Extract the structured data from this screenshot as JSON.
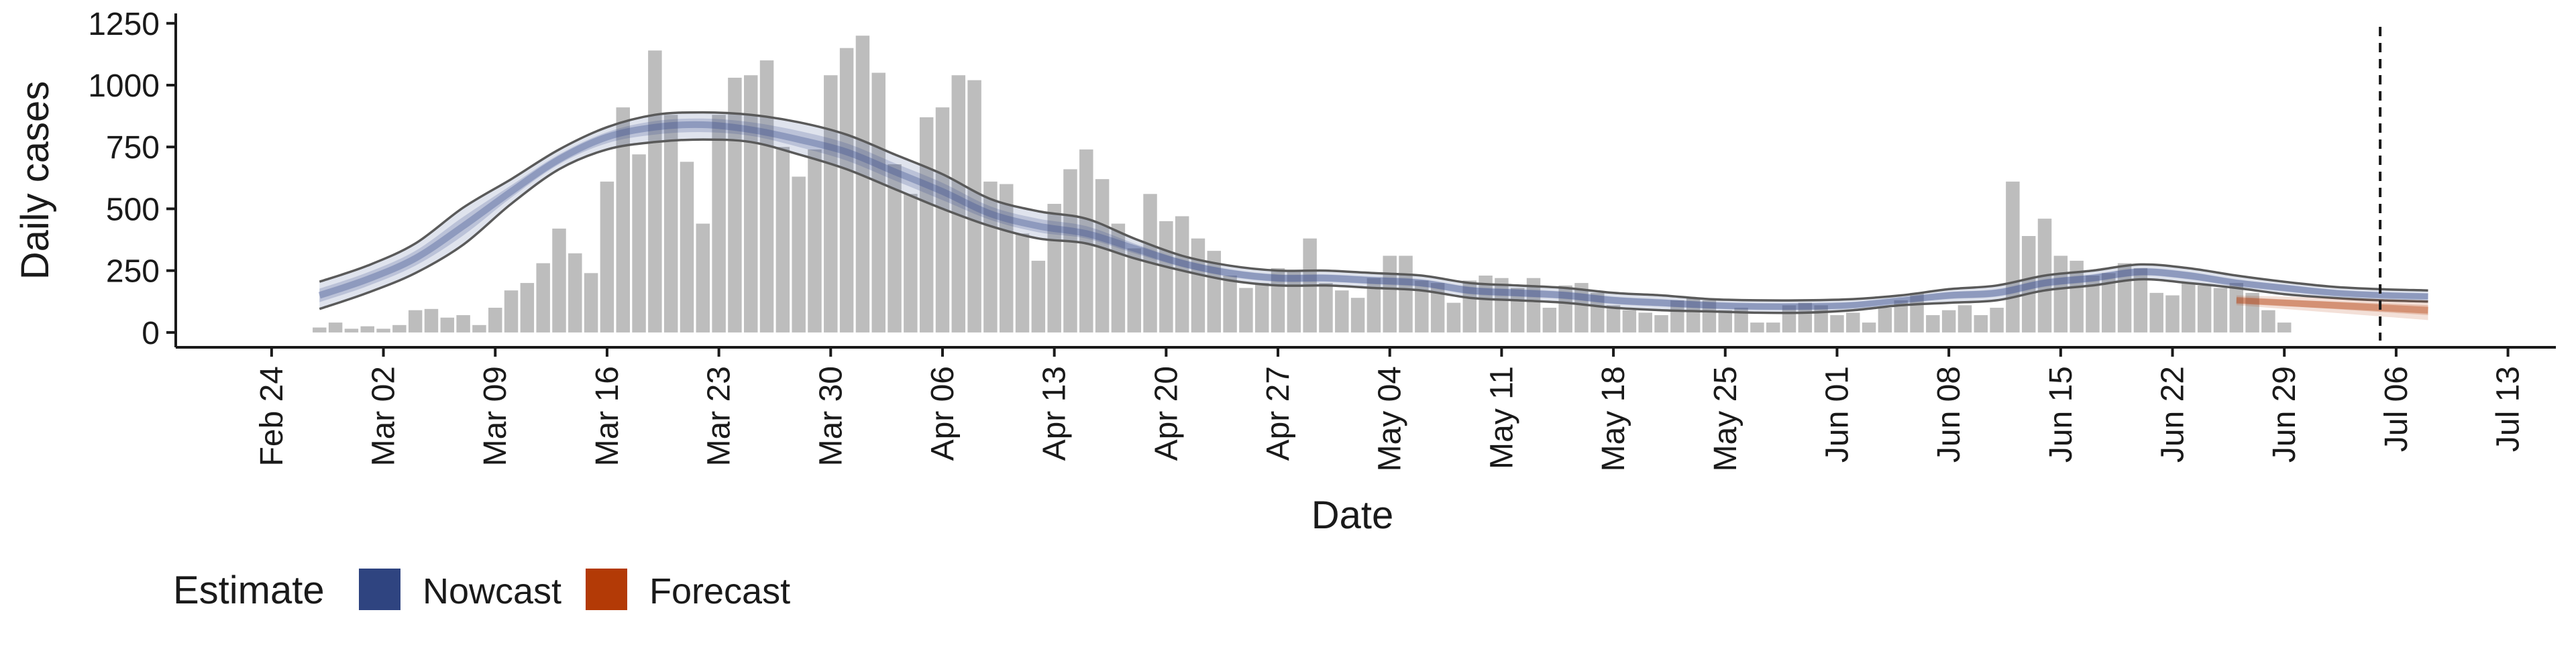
{
  "chart_data": {
    "type": "bar",
    "xlabel": "Date",
    "ylabel": "Daily cases",
    "ylim": [
      -60,
      1290
    ],
    "y_ticks": [
      0,
      250,
      500,
      750,
      1000,
      1250
    ],
    "x_range": [
      "2020-02-18",
      "2020-07-16"
    ],
    "x_ticks": [
      {
        "date": "2020-02-24",
        "label": "Feb 24"
      },
      {
        "date": "2020-03-02",
        "label": "Mar 02"
      },
      {
        "date": "2020-03-09",
        "label": "Mar 09"
      },
      {
        "date": "2020-03-16",
        "label": "Mar 16"
      },
      {
        "date": "2020-03-23",
        "label": "Mar 23"
      },
      {
        "date": "2020-03-30",
        "label": "Mar 30"
      },
      {
        "date": "2020-04-06",
        "label": "Apr 06"
      },
      {
        "date": "2020-04-13",
        "label": "Apr 13"
      },
      {
        "date": "2020-04-20",
        "label": "Apr 20"
      },
      {
        "date": "2020-04-27",
        "label": "Apr 27"
      },
      {
        "date": "2020-05-04",
        "label": "May 04"
      },
      {
        "date": "2020-05-11",
        "label": "May 11"
      },
      {
        "date": "2020-05-18",
        "label": "May 18"
      },
      {
        "date": "2020-05-25",
        "label": "May 25"
      },
      {
        "date": "2020-06-01",
        "label": "Jun 01"
      },
      {
        "date": "2020-06-08",
        "label": "Jun 08"
      },
      {
        "date": "2020-06-15",
        "label": "Jun 15"
      },
      {
        "date": "2020-06-22",
        "label": "Jun 22"
      },
      {
        "date": "2020-06-29",
        "label": "Jun 29"
      },
      {
        "date": "2020-07-06",
        "label": "Jul 06"
      },
      {
        "date": "2020-07-13",
        "label": "Jul 13"
      }
    ],
    "bars": {
      "start_date": "2020-02-27",
      "values": [
        20,
        40,
        15,
        25,
        15,
        30,
        90,
        95,
        60,
        70,
        30,
        100,
        170,
        200,
        280,
        420,
        320,
        240,
        610,
        910,
        720,
        1140,
        880,
        690,
        440,
        880,
        1030,
        1040,
        1100,
        750,
        630,
        740,
        1040,
        1150,
        1200,
        1050,
        680,
        560,
        870,
        910,
        1040,
        1020,
        610,
        600,
        400,
        290,
        520,
        660,
        740,
        620,
        440,
        340,
        560,
        450,
        470,
        380,
        330,
        230,
        180,
        200,
        260,
        250,
        380,
        200,
        170,
        140,
        220,
        310,
        310,
        210,
        200,
        120,
        210,
        230,
        220,
        180,
        220,
        100,
        190,
        200,
        160,
        110,
        90,
        80,
        70,
        130,
        140,
        130,
        90,
        100,
        40,
        40,
        110,
        120,
        110,
        70,
        80,
        40,
        100,
        130,
        160,
        70,
        90,
        110,
        70,
        100,
        610,
        390,
        460,
        310,
        290,
        230,
        240,
        280,
        260,
        160,
        150,
        200,
        190,
        180,
        200,
        160,
        90,
        40
      ]
    },
    "vline_date": "2020-07-05",
    "series": [
      {
        "name": "Nowcast",
        "color": "#3b4f8f",
        "x_start": "2020-02-27",
        "step_days": 3,
        "median": [
          150,
          215,
          300,
          430,
          570,
          700,
          790,
          830,
          840,
          820,
          780,
          730,
          650,
          570,
          480,
          430,
          400,
          340,
          280,
          240,
          220,
          220,
          210,
          200,
          170,
          160,
          150,
          130,
          120,
          110,
          105,
          105,
          110,
          130,
          150,
          160,
          200,
          220,
          245,
          230,
          200,
          180,
          160,
          150,
          145
        ],
        "band_low": [
          95,
          160,
          240,
          355,
          520,
          660,
          740,
          770,
          780,
          770,
          720,
          660,
          580,
          500,
          430,
          380,
          360,
          300,
          250,
          210,
          190,
          190,
          180,
          170,
          140,
          130,
          120,
          100,
          90,
          85,
          80,
          80,
          90,
          110,
          120,
          130,
          170,
          190,
          215,
          200,
          180,
          155,
          140,
          130,
          125
        ],
        "band_high": [
          205,
          270,
          360,
          505,
          620,
          740,
          830,
          880,
          890,
          880,
          850,
          800,
          720,
          640,
          540,
          490,
          460,
          380,
          310,
          270,
          250,
          250,
          240,
          230,
          200,
          190,
          180,
          160,
          150,
          135,
          130,
          130,
          135,
          150,
          175,
          190,
          230,
          250,
          275,
          260,
          230,
          205,
          185,
          175,
          170
        ]
      },
      {
        "name": "Forecast",
        "color": "#b5400f",
        "x_start": "2020-06-26",
        "step_days": 3,
        "median": [
          130,
          120,
          110,
          100,
          90
        ],
        "band_low": [
          110,
          95,
          80,
          65,
          50
        ],
        "band_high": [
          150,
          145,
          140,
          135,
          130
        ]
      }
    ],
    "legend": {
      "title": "Estimate",
      "position": "bottom-left",
      "items": [
        {
          "label": "Nowcast",
          "color": "#2f4480"
        },
        {
          "label": "Forecast",
          "color": "#b33a06"
        }
      ]
    },
    "grid": false,
    "bar_color": "#bdbdbd"
  }
}
